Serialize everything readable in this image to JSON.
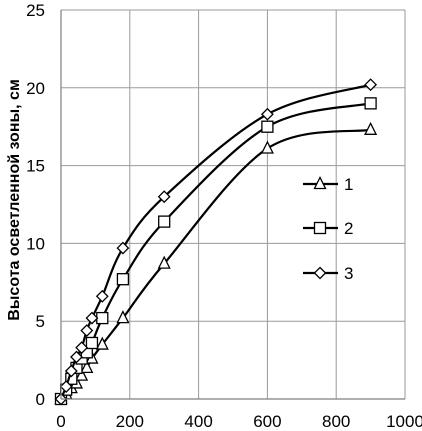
{
  "chart_data": {
    "type": "line",
    "title": "",
    "xlabel": "",
    "ylabel": "Высота  осветленной зоны, см",
    "xlim": [
      0,
      1000
    ],
    "ylim": [
      0,
      25
    ],
    "x_ticks": [
      0,
      200,
      400,
      600,
      800,
      1000
    ],
    "x_tick_labels": [
      "0",
      "200",
      "400",
      "600",
      "800",
      "1000"
    ],
    "y_ticks": [
      0,
      5,
      10,
      15,
      20,
      25
    ],
    "y_tick_labels": [
      "0",
      "5",
      "10",
      "15",
      "20",
      "25"
    ],
    "grid": true,
    "legend_position": "right",
    "series": [
      {
        "name": "1",
        "marker": "triangle",
        "x": [
          0,
          15,
          30,
          45,
          60,
          75,
          90,
          120,
          180,
          300,
          600,
          900
        ],
        "y": [
          0,
          0.3,
          0.7,
          1.0,
          1.5,
          2.0,
          2.6,
          3.5,
          5.2,
          8.7,
          16.1,
          17.3
        ]
      },
      {
        "name": "2",
        "marker": "square",
        "x": [
          0,
          15,
          30,
          45,
          60,
          75,
          90,
          120,
          180,
          300,
          600,
          900
        ],
        "y": [
          0,
          0.6,
          1.3,
          2.0,
          2.6,
          3.0,
          3.6,
          5.2,
          7.7,
          11.4,
          17.5,
          19.0
        ]
      },
      {
        "name": "3",
        "marker": "diamond",
        "x": [
          0,
          15,
          30,
          45,
          60,
          75,
          90,
          120,
          180,
          300,
          600,
          900
        ],
        "y": [
          0,
          0.8,
          1.8,
          2.7,
          3.3,
          4.4,
          5.2,
          6.6,
          9.7,
          13.0,
          18.3,
          20.2
        ]
      }
    ]
  }
}
